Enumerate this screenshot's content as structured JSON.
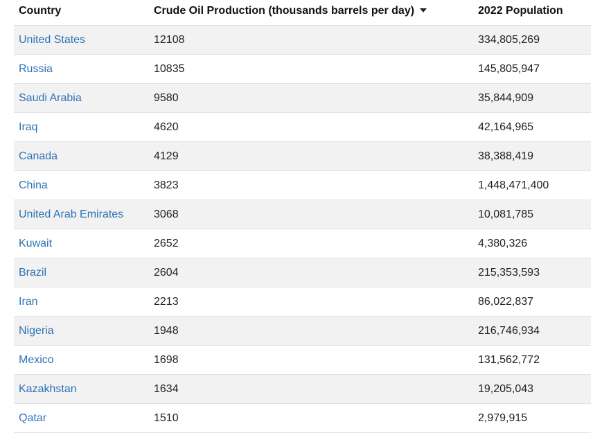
{
  "table": {
    "headers": {
      "country": "Country",
      "oil": "Crude Oil Production (thousands barrels per day)",
      "population": "2022 Population"
    },
    "sort_indicator": "sort-descending-icon",
    "rows": [
      {
        "country": "United States",
        "oil": "12108",
        "population": "334,805,269"
      },
      {
        "country": "Russia",
        "oil": "10835",
        "population": "145,805,947"
      },
      {
        "country": "Saudi Arabia",
        "oil": "9580",
        "population": "35,844,909"
      },
      {
        "country": "Iraq",
        "oil": "4620",
        "population": "42,164,965"
      },
      {
        "country": "Canada",
        "oil": "4129",
        "population": "38,388,419"
      },
      {
        "country": "China",
        "oil": "3823",
        "population": "1,448,471,400"
      },
      {
        "country": "United Arab Emirates",
        "oil": "3068",
        "population": "10,081,785"
      },
      {
        "country": "Kuwait",
        "oil": "2652",
        "population": "4,380,326"
      },
      {
        "country": "Brazil",
        "oil": "2604",
        "population": "215,353,593"
      },
      {
        "country": "Iran",
        "oil": "2213",
        "population": "86,022,837"
      },
      {
        "country": "Nigeria",
        "oil": "1948",
        "population": "216,746,934"
      },
      {
        "country": "Mexico",
        "oil": "1698",
        "population": "131,562,772"
      },
      {
        "country": "Kazakhstan",
        "oil": "1634",
        "population": "19,205,043"
      },
      {
        "country": "Qatar",
        "oil": "1510",
        "population": "2,979,915"
      }
    ]
  },
  "colors": {
    "link": "#2f73b6",
    "stripe": "#f2f2f2",
    "border": "#e2e2e2"
  }
}
